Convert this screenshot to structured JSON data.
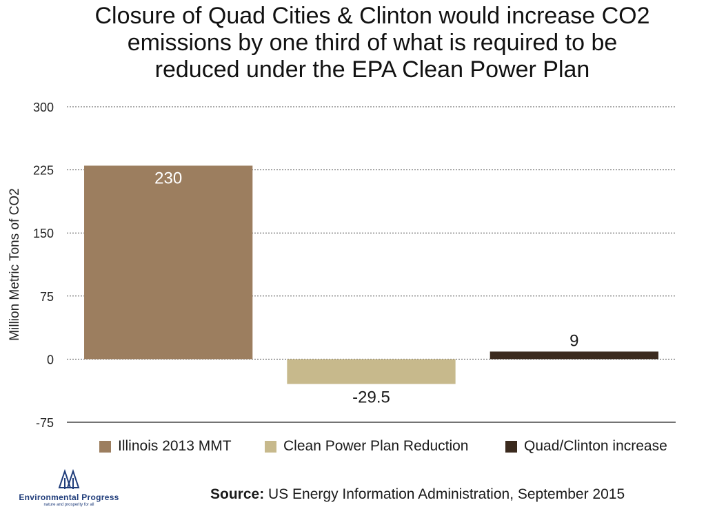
{
  "title_lines": [
    "Closure of Quad Cities & Clinton would increase CO2",
    "emissions by one third of what is required to be",
    "reduced under the EPA Clean Power Plan"
  ],
  "chart_data": {
    "type": "bar",
    "title": "Closure of Quad Cities & Clinton would increase CO2 emissions by one third of what is required to be reduced under the EPA Clean Power Plan",
    "ylabel": "Million Metric Tons of CO2",
    "xlabel": "",
    "ylim": [
      -75,
      300
    ],
    "yticks": [
      300,
      225,
      150,
      75,
      0,
      -75
    ],
    "grid": true,
    "legend_position": "bottom",
    "series": [
      {
        "name": "Illinois 2013 MMT",
        "value": 230,
        "label": "230",
        "color": "#9c7e5f"
      },
      {
        "name": "Clean Power Plan Reduction",
        "value": -29.5,
        "label": "-29.5",
        "color": "#c7b98c"
      },
      {
        "name": "Quad/Clinton increase",
        "value": 9,
        "label": "9",
        "color": "#3b2a1e"
      }
    ]
  },
  "source": {
    "label": "Source:",
    "text": "US Energy Information Administration, September 2015"
  },
  "logo": {
    "name": "Environmental Progress",
    "tagline": "nature and prosperity for all",
    "icon": "tree-icon",
    "color": "#1f3c7a"
  }
}
